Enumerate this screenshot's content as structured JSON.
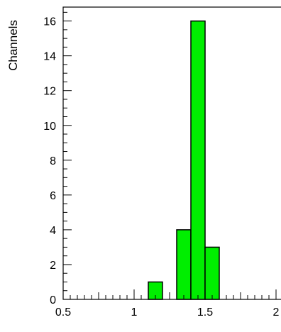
{
  "chart_data": {
    "type": "bar",
    "title": "",
    "xlabel": "",
    "ylabel": "Channels",
    "x_tick_labels": [
      "0.5",
      "1",
      "1.5",
      "2"
    ],
    "y_tick_labels": [
      "0",
      "2",
      "4",
      "6",
      "8",
      "10",
      "12",
      "14",
      "16"
    ],
    "xlim": [
      0.5,
      2.0
    ],
    "ylim": [
      0,
      16.8
    ],
    "bins": [
      {
        "x0": 1.1,
        "x1": 1.2,
        "value": 1
      },
      {
        "x0": 1.3,
        "x1": 1.4,
        "value": 4
      },
      {
        "x0": 1.4,
        "x1": 1.5,
        "value": 16
      },
      {
        "x0": 1.5,
        "x1": 1.6,
        "value": 3
      }
    ],
    "bar_color": "#00ee00",
    "grid": false
  }
}
